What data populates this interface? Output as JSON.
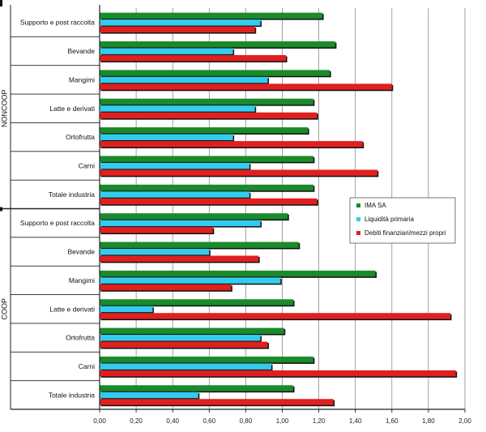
{
  "chart_data": {
    "type": "bar",
    "orientation": "horizontal",
    "title": "",
    "xlabel": "",
    "ylabel": "",
    "xlim": [
      0,
      2.0
    ],
    "x_ticks": [
      "0,00",
      "0,20",
      "0,40",
      "0,60",
      "0,80",
      "1,00",
      "1,20",
      "1,40",
      "1,60",
      "1,80",
      "2,00"
    ],
    "grid": true,
    "legend_position": "right",
    "groups": [
      {
        "name": "NONCOOP",
        "categories": [
          "Supporto e post raccolta",
          "Bevande",
          "Mangimi",
          "Latte e derivati",
          "Ortofrutta",
          "Carni",
          "Totale industria"
        ]
      },
      {
        "name": "COOP",
        "categories": [
          "Supporto e post raccolta",
          "Bevande",
          "Mangimi",
          "Latte e derivati",
          "Ortofrutta",
          "Carni",
          "Totale industria"
        ]
      }
    ],
    "series": [
      {
        "name": "IMA SA",
        "color": "#1a8a2a",
        "values": [
          1.22,
          1.29,
          1.26,
          1.17,
          1.14,
          1.17,
          1.17,
          1.03,
          1.09,
          1.51,
          1.06,
          1.01,
          1.17,
          1.06
        ]
      },
      {
        "name": "Liquidità primaria",
        "color": "#33ccee",
        "values": [
          0.88,
          0.73,
          0.92,
          0.85,
          0.73,
          0.82,
          0.82,
          0.88,
          0.6,
          0.99,
          0.29,
          0.88,
          0.94,
          0.54
        ]
      },
      {
        "name": "Debiti finanziari/mezzi propri",
        "color": "#e02020",
        "values": [
          0.85,
          1.02,
          1.6,
          1.19,
          1.44,
          1.52,
          1.19,
          0.62,
          0.87,
          0.72,
          1.92,
          0.92,
          1.95,
          1.28
        ]
      }
    ]
  }
}
